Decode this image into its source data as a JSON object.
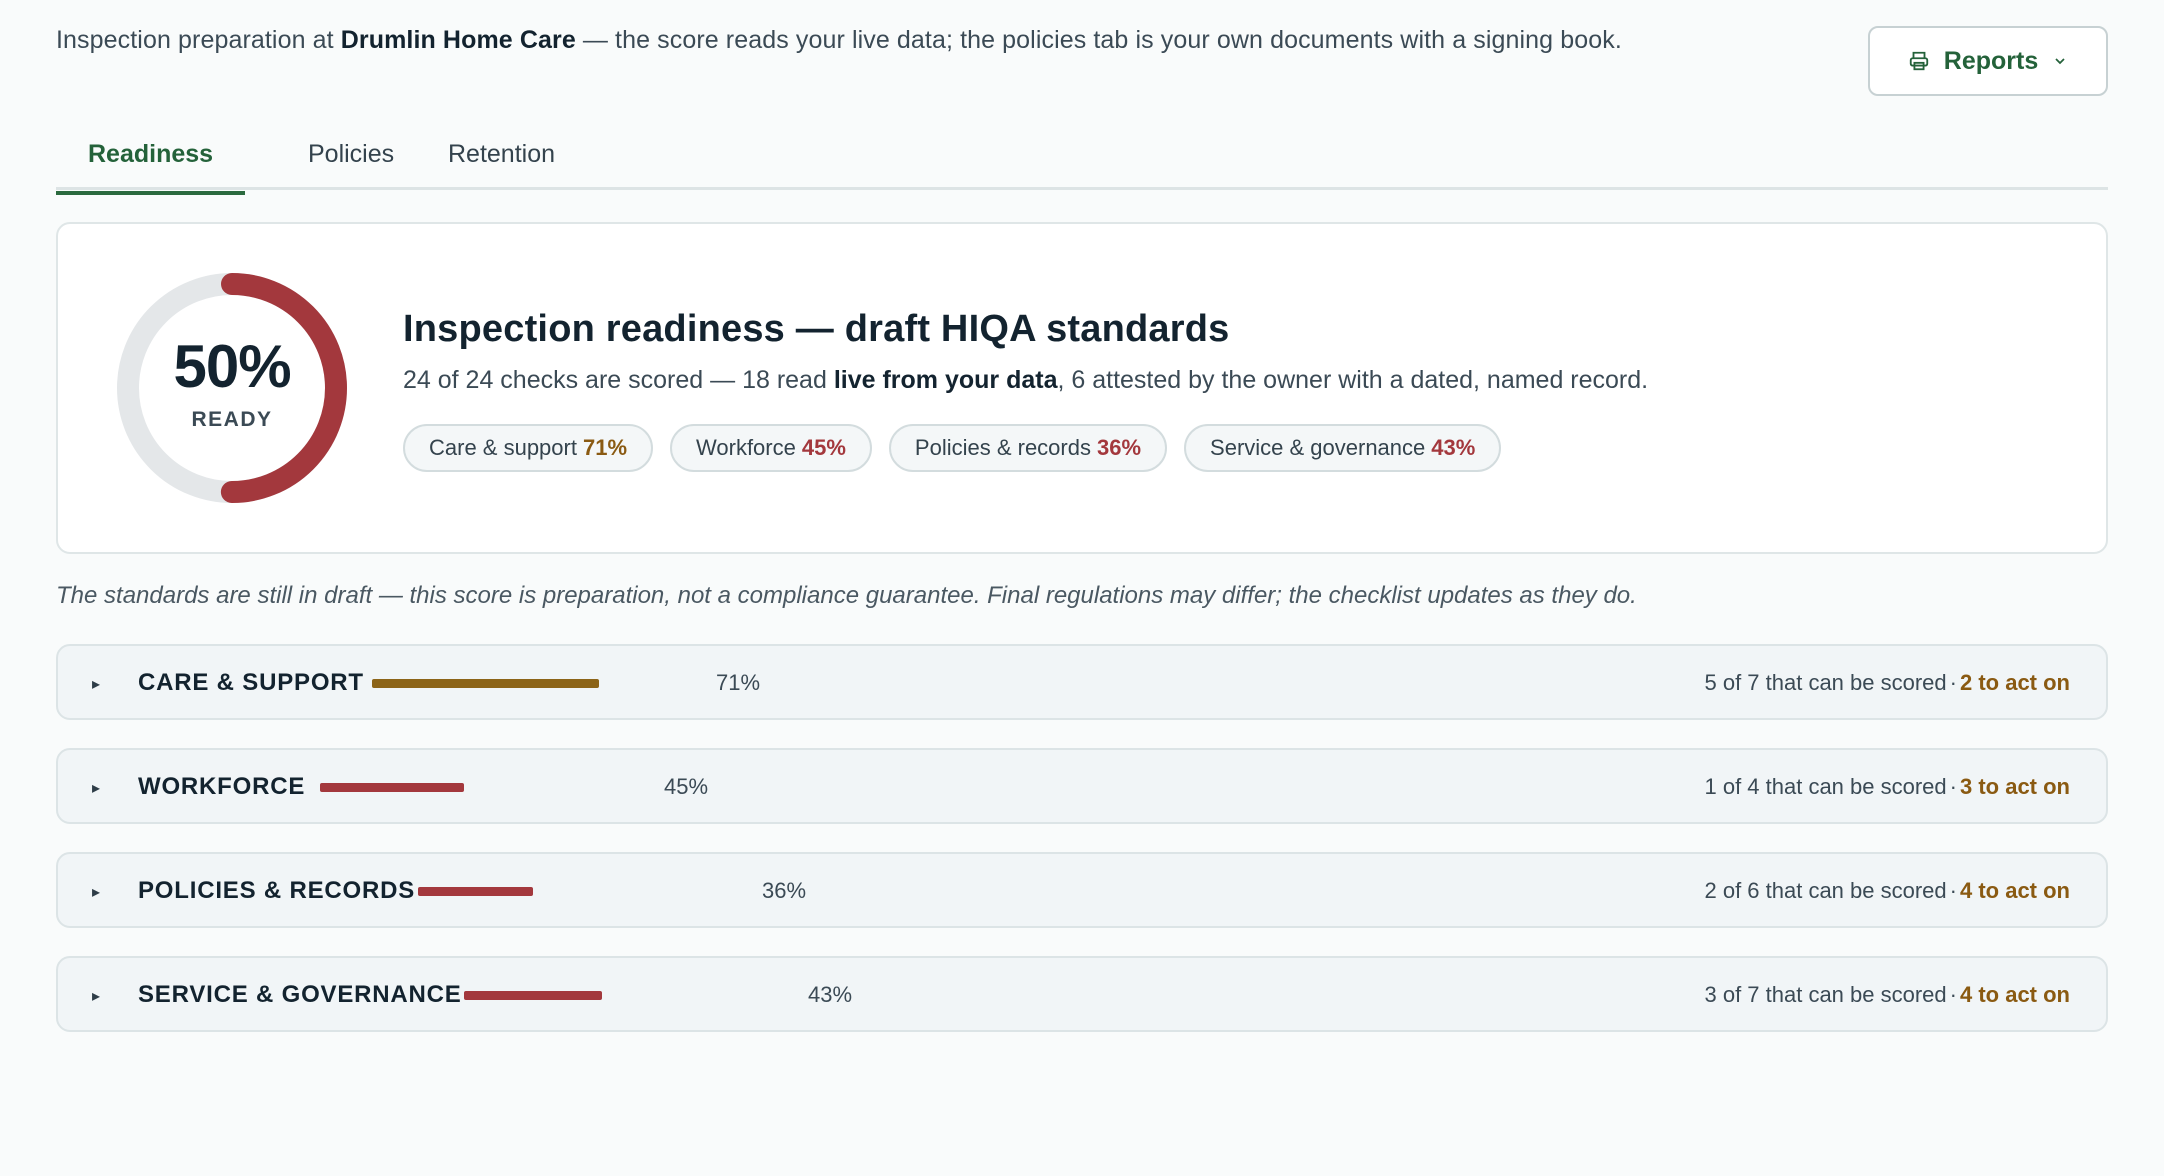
{
  "intro": {
    "prefix": "Inspection preparation at ",
    "org": "Drumlin Home Care",
    "suffix": " — the score reads your live data; the policies tab is your own documents with a signing book."
  },
  "reports_button": {
    "label": "Reports",
    "icon": "printer-icon",
    "chevron": "chevron-down-icon"
  },
  "tabs": [
    {
      "label": "Readiness",
      "active": true
    },
    {
      "label": "Policies",
      "active": false
    },
    {
      "label": "Retention",
      "active": false
    }
  ],
  "readiness": {
    "percent": 50,
    "percent_label": "50%",
    "ready_label": "READY",
    "title": "Inspection readiness — draft HIQA standards",
    "sub_prefix": "24 of 24 checks are scored — 18 read ",
    "sub_bold": "live from your data",
    "sub_suffix": ", 6 attested by the owner with a dated, named record.",
    "pills": [
      {
        "label": "Care & support",
        "value": "71%"
      },
      {
        "label": "Workforce",
        "value": "45%"
      },
      {
        "label": "Policies & records",
        "value": "36%"
      },
      {
        "label": "Service & governance",
        "value": "43%"
      }
    ]
  },
  "disclaimer": "The standards are still in draft — this score is preparation, not a compliance guarantee. Final regulations may differ; the checklist updates as they do.",
  "sections": [
    {
      "name": "CARE & SUPPORT",
      "percent": 71,
      "percent_label": "71%",
      "scored": "5 of 7 that can be scored",
      "dot": "·",
      "act": "2 to act on"
    },
    {
      "name": "WORKFORCE",
      "percent": 45,
      "percent_label": "45%",
      "scored": "1 of 4 that can be scored",
      "dot": "·",
      "act": "3 to act on"
    },
    {
      "name": "POLICIES & RECORDS",
      "percent": 36,
      "percent_label": "36%",
      "scored": "2 of 6 that can be scored",
      "dot": "·",
      "act": "4 to act on"
    },
    {
      "name": "SERVICE & GOVERNANCE",
      "percent": 43,
      "percent_label": "43%",
      "scored": "3 of 7 that can be scored",
      "dot": "·",
      "act": "4 to act on"
    }
  ],
  "colors": {
    "accent_green": "#2b6a3f",
    "good": "#8a5a12",
    "good_bar": "#8c6418",
    "low": "#a3383d",
    "gauge_track": "#e4e7e9"
  },
  "caret": "▸"
}
